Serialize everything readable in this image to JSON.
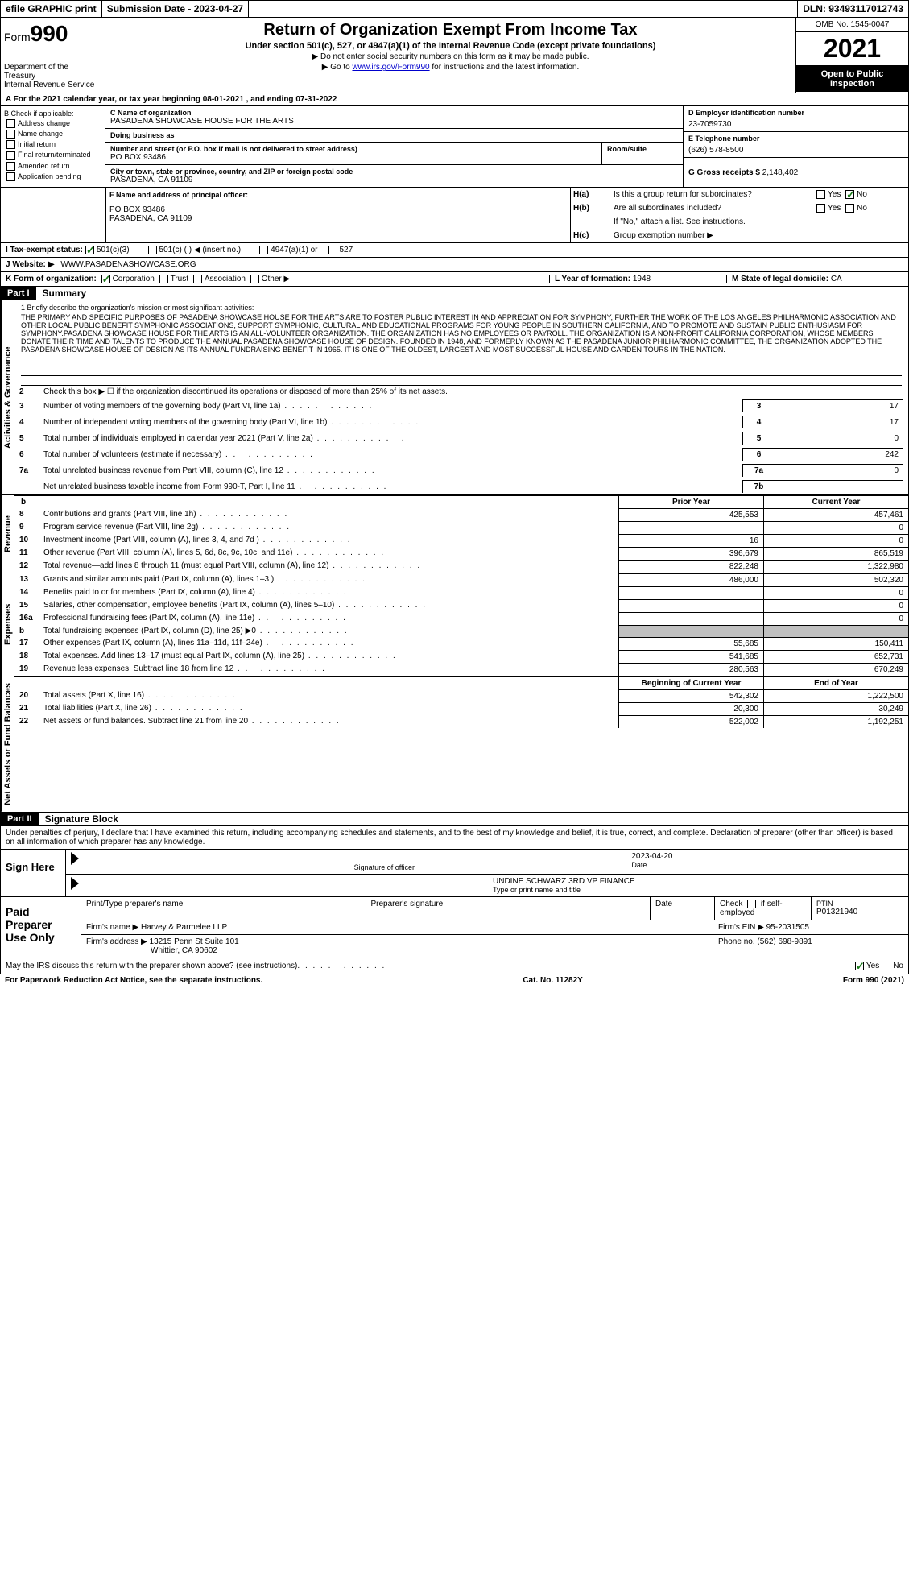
{
  "top": {
    "efile": "efile GRAPHIC print",
    "submission_label": "Submission Date - 2023-04-27",
    "dln": "DLN: 93493117012743"
  },
  "header": {
    "form_prefix": "Form",
    "form_number": "990",
    "dept": "Department of the Treasury",
    "irs": "Internal Revenue Service",
    "title": "Return of Organization Exempt From Income Tax",
    "subtitle": "Under section 501(c), 527, or 4947(a)(1) of the Internal Revenue Code (except private foundations)",
    "note1": "▶ Do not enter social security numbers on this form as it may be made public.",
    "note2_pre": "▶ Go to ",
    "note2_link": "www.irs.gov/Form990",
    "note2_post": " for instructions and the latest information.",
    "omb": "OMB No. 1545-0047",
    "year": "2021",
    "open": "Open to Public Inspection"
  },
  "row_a": "A For the 2021 calendar year, or tax year beginning 08-01-2021  , and ending 07-31-2022",
  "sec_b": {
    "label": "B Check if applicable:",
    "opts": [
      "Address change",
      "Name change",
      "Initial return",
      "Final return/terminated",
      "Amended return",
      "Application pending"
    ]
  },
  "sec_c": {
    "name_label": "C Name of organization",
    "name": "PASADENA SHOWCASE HOUSE FOR THE ARTS",
    "dba_label": "Doing business as",
    "dba": "",
    "addr_label": "Number and street (or P.O. box if mail is not delivered to street address)",
    "addr": "PO BOX 93486",
    "room_label": "Room/suite",
    "city_label": "City or town, state or province, country, and ZIP or foreign postal code",
    "city": "PASADENA, CA  91109"
  },
  "sec_d": {
    "ein_label": "D Employer identification number",
    "ein": "23-7059730",
    "phone_label": "E Telephone number",
    "phone": "(626) 578-8500",
    "gross_label": "G Gross receipts $",
    "gross": "2,148,402"
  },
  "sec_f": {
    "label": "F  Name and address of principal officer:",
    "line1": "PO BOX 93486",
    "line2": "PASADENA, CA  91109"
  },
  "sec_h": {
    "a_label": "H(a)",
    "a_q": "Is this a group return for subordinates?",
    "b_label": "H(b)",
    "b_q": "Are all subordinates included?",
    "b_note": "If \"No,\" attach a list. See instructions.",
    "c_label": "H(c)",
    "c_q": "Group exemption number ▶",
    "yes": "Yes",
    "no": "No"
  },
  "tax_status": {
    "label": "I  Tax-exempt status:",
    "o1": "501(c)(3)",
    "o2": "501(c) (  ) ◀ (insert no.)",
    "o3": "4947(a)(1) or",
    "o4": "527"
  },
  "website": {
    "label": "J  Website: ▶",
    "value": "WWW.PASADENASHOWCASE.ORG"
  },
  "sec_k": {
    "label": "K Form of organization:",
    "corp": "Corporation",
    "trust": "Trust",
    "assoc": "Association",
    "other": "Other ▶"
  },
  "sec_l": {
    "label": "L Year of formation:",
    "value": "1948"
  },
  "sec_m": {
    "label": "M State of legal domicile:",
    "value": "CA"
  },
  "parts": {
    "p1": "Part I",
    "p1t": "Summary",
    "p2": "Part II",
    "p2t": "Signature Block"
  },
  "vtabs": {
    "gov": "Activities & Governance",
    "rev": "Revenue",
    "exp": "Expenses",
    "net": "Net Assets or Fund Balances"
  },
  "mission": {
    "label": "1   Briefly describe the organization's mission or most significant activities:",
    "text": "THE PRIMARY AND SPECIFIC PURPOSES OF PASADENA SHOWCASE HOUSE FOR THE ARTS ARE TO FOSTER PUBLIC INTEREST IN AND APPRECIATION FOR SYMPHONY, FURTHER THE WORK OF THE LOS ANGELES PHILHARMONIC ASSOCIATION AND OTHER LOCAL PUBLIC BENEFIT SYMPHONIC ASSOCIATIONS, SUPPORT SYMPHONIC, CULTURAL AND EDUCATIONAL PROGRAMS FOR YOUNG PEOPLE IN SOUTHERN CALIFORNIA, AND TO PROMOTE AND SUSTAIN PUBLIC ENTHUSIASM FOR SYMPHONY.PASADENA SHOWCASE HOUSE FOR THE ARTS IS AN ALL-VOLUNTEER ORGANIZATION. THE ORGANIZATION HAS NO EMPLOYEES OR PAYROLL. THE ORGANIZATION IS A NON-PROFIT CALIFORNIA CORPORATION, WHOSE MEMBERS DONATE THEIR TIME AND TALENTS TO PRODUCE THE ANNUAL PASADENA SHOWCASE HOUSE OF DESIGN. FOUNDED IN 1948, AND FORMERLY KNOWN AS THE PASADENA JUNIOR PHILHARMONIC COMMITTEE, THE ORGANIZATION ADOPTED THE PASADENA SHOWCASE HOUSE OF DESIGN AS ITS ANNUAL FUNDRAISING BENEFIT IN 1965. IT IS ONE OF THE OLDEST, LARGEST AND MOST SUCCESSFUL HOUSE AND GARDEN TOURS IN THE NATION."
  },
  "gov_lines": [
    {
      "n": "2",
      "label": "Check this box ▶ ☐ if the organization discontinued its operations or disposed of more than 25% of its net assets."
    },
    {
      "n": "3",
      "label": "Number of voting members of the governing body (Part VI, line 1a)",
      "box": "3",
      "val": "17"
    },
    {
      "n": "4",
      "label": "Number of independent voting members of the governing body (Part VI, line 1b)",
      "box": "4",
      "val": "17"
    },
    {
      "n": "5",
      "label": "Total number of individuals employed in calendar year 2021 (Part V, line 2a)",
      "box": "5",
      "val": "0"
    },
    {
      "n": "6",
      "label": "Total number of volunteers (estimate if necessary)",
      "box": "6",
      "val": "242"
    },
    {
      "n": "7a",
      "label": "Total unrelated business revenue from Part VIII, column (C), line 12",
      "box": "7a",
      "val": "0"
    },
    {
      "n": "",
      "label": "Net unrelated business taxable income from Form 990-T, Part I, line 11",
      "box": "7b",
      "val": ""
    }
  ],
  "col_headers": {
    "b": "b",
    "prior": "Prior Year",
    "curr": "Current Year",
    "beg": "Beginning of Current Year",
    "end": "End of Year"
  },
  "rev_lines": [
    {
      "n": "8",
      "label": "Contributions and grants (Part VIII, line 1h)",
      "p": "425,553",
      "c": "457,461"
    },
    {
      "n": "9",
      "label": "Program service revenue (Part VIII, line 2g)",
      "p": "",
      "c": "0"
    },
    {
      "n": "10",
      "label": "Investment income (Part VIII, column (A), lines 3, 4, and 7d )",
      "p": "16",
      "c": "0"
    },
    {
      "n": "11",
      "label": "Other revenue (Part VIII, column (A), lines 5, 6d, 8c, 9c, 10c, and 11e)",
      "p": "396,679",
      "c": "865,519"
    },
    {
      "n": "12",
      "label": "Total revenue—add lines 8 through 11 (must equal Part VIII, column (A), line 12)",
      "p": "822,248",
      "c": "1,322,980"
    }
  ],
  "exp_lines": [
    {
      "n": "13",
      "label": "Grants and similar amounts paid (Part IX, column (A), lines 1–3 )",
      "p": "486,000",
      "c": "502,320"
    },
    {
      "n": "14",
      "label": "Benefits paid to or for members (Part IX, column (A), line 4)",
      "p": "",
      "c": "0"
    },
    {
      "n": "15",
      "label": "Salaries, other compensation, employee benefits (Part IX, column (A), lines 5–10)",
      "p": "",
      "c": "0"
    },
    {
      "n": "16a",
      "label": "Professional fundraising fees (Part IX, column (A), line 11e)",
      "p": "",
      "c": "0"
    },
    {
      "n": "b",
      "label": "Total fundraising expenses (Part IX, column (D), line 25) ▶0",
      "p": "grey",
      "c": "grey"
    },
    {
      "n": "17",
      "label": "Other expenses (Part IX, column (A), lines 11a–11d, 11f–24e)",
      "p": "55,685",
      "c": "150,411"
    },
    {
      "n": "18",
      "label": "Total expenses. Add lines 13–17 (must equal Part IX, column (A), line 25)",
      "p": "541,685",
      "c": "652,731"
    },
    {
      "n": "19",
      "label": "Revenue less expenses. Subtract line 18 from line 12",
      "p": "280,563",
      "c": "670,249"
    }
  ],
  "net_lines": [
    {
      "n": "20",
      "label": "Total assets (Part X, line 16)",
      "p": "542,302",
      "c": "1,222,500"
    },
    {
      "n": "21",
      "label": "Total liabilities (Part X, line 26)",
      "p": "20,300",
      "c": "30,249"
    },
    {
      "n": "22",
      "label": "Net assets or fund balances. Subtract line 21 from line 20",
      "p": "522,002",
      "c": "1,192,251"
    }
  ],
  "penalties": "Under penalties of perjury, I declare that I have examined this return, including accompanying schedules and statements, and to the best of my knowledge and belief, it is true, correct, and complete. Declaration of preparer (other than officer) is based on all information of which preparer has any knowledge.",
  "sign": {
    "here": "Sign Here",
    "sig_officer": "Signature of officer",
    "date_label": "Date",
    "date": "2023-04-20",
    "name": "UNDINE SCHWARZ  3RD VP FINANCE",
    "name_label": "Type or print name and title"
  },
  "paid": {
    "title": "Paid Preparer Use Only",
    "h1": "Print/Type preparer's name",
    "h2": "Preparer's signature",
    "h3": "Date",
    "h4_pre": "Check",
    "h4_post": "if self-employed",
    "ptin_label": "PTIN",
    "ptin": "P01321940",
    "firm_name_label": "Firm's name   ▶",
    "firm_name": "Harvey & Parmelee LLP",
    "firm_ein_label": "Firm's EIN ▶",
    "firm_ein": "95-2031505",
    "firm_addr_label": "Firm's address ▶",
    "firm_addr": "13215 Penn St Suite 101",
    "firm_city": "Whittier, CA  90602",
    "phone_label": "Phone no.",
    "phone": "(562) 698-9891"
  },
  "irs_discuss": {
    "q": "May the IRS discuss this return with the preparer shown above? (see instructions)",
    "yes": "Yes",
    "no": "No"
  },
  "footer": {
    "pra": "For Paperwork Reduction Act Notice, see the separate instructions.",
    "cat": "Cat. No. 11282Y",
    "form": "Form 990 (2021)"
  }
}
